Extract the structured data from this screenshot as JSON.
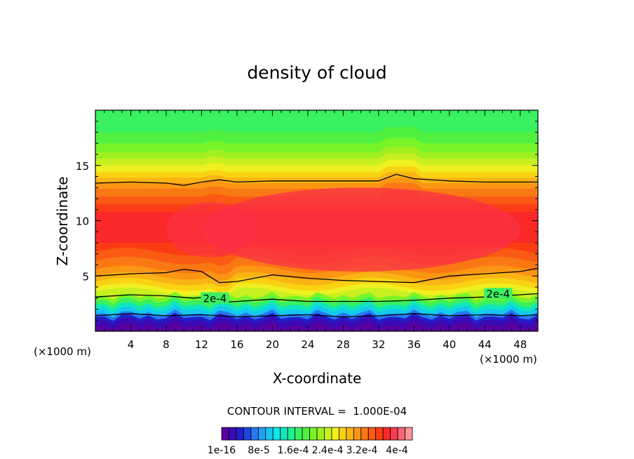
{
  "chart_data": {
    "type": "contour",
    "title": "density of cloud",
    "xlabel": "X-coordinate",
    "ylabel": "Z-coordinate",
    "x_unit": "(×1000 m)",
    "y_unit": "(×1000 m)",
    "xlim": [
      0,
      50
    ],
    "ylim": [
      0,
      20
    ],
    "x_ticks": [
      4,
      8,
      12,
      16,
      20,
      24,
      28,
      32,
      36,
      40,
      44,
      48
    ],
    "y_ticks": [
      5,
      10,
      15
    ],
    "contour_interval": "CONTOUR INTERVAL =  1.000E-04",
    "contour_line_labels": [
      "2e-4",
      "2e-4"
    ],
    "colorbar_labels": [
      "1e-16",
      "8e-5",
      "1.6e-4",
      "2.4e-4",
      "3.2e-4",
      "4e-4"
    ],
    "colorbar_colors": [
      "#5a00a0",
      "#3c0ab4",
      "#2020c8",
      "#1e46dc",
      "#2878f0",
      "#1ea0f0",
      "#14c8f0",
      "#10e6e6",
      "#10e6be",
      "#20f090",
      "#38f060",
      "#50f040",
      "#78f428",
      "#a0f020",
      "#c8f020",
      "#f0f020",
      "#fad214",
      "#fab414",
      "#fa9614",
      "#fa7814",
      "#fa5a14",
      "#fa3c14",
      "#fa2828",
      "#fa3c50",
      "#fa6478",
      "#fa9696"
    ],
    "series": [
      {
        "type": "contour_line",
        "level": "2e-4",
        "x": [
          0,
          4,
          8,
          11,
          13,
          14,
          16,
          20,
          24,
          28,
          32,
          36,
          40,
          44,
          48,
          50
        ],
        "y": [
          3.1,
          3.3,
          3.2,
          3.0,
          3.1,
          2.6,
          2.7,
          2.9,
          2.7,
          2.7,
          2.7,
          2.8,
          3.0,
          3.1,
          3.3,
          3.4
        ]
      },
      {
        "type": "contour_line",
        "level": "lower",
        "x": [
          0,
          4,
          8,
          12,
          16,
          20,
          24,
          28,
          32,
          36,
          40,
          44,
          48,
          50
        ],
        "y": [
          1.4,
          1.6,
          1.4,
          1.5,
          1.3,
          1.4,
          1.5,
          1.3,
          1.4,
          1.6,
          1.4,
          1.5,
          1.4,
          1.5
        ]
      },
      {
        "type": "contour_line",
        "level": "lower-middle",
        "x": [
          0,
          4,
          8,
          10,
          12,
          14,
          16,
          20,
          24,
          28,
          32,
          36,
          40,
          44,
          48,
          50
        ],
        "y": [
          5.0,
          5.2,
          5.3,
          5.6,
          5.4,
          4.4,
          4.5,
          5.1,
          4.8,
          4.6,
          4.5,
          4.4,
          5.0,
          5.2,
          5.4,
          5.7
        ]
      },
      {
        "type": "contour_line",
        "level": "upper",
        "x": [
          0,
          4,
          8,
          10,
          12,
          14,
          16,
          20,
          24,
          28,
          32,
          34,
          36,
          40,
          44,
          48,
          50
        ],
        "y": [
          13.4,
          13.5,
          13.4,
          13.2,
          13.5,
          13.7,
          13.5,
          13.6,
          13.6,
          13.6,
          13.6,
          14.2,
          13.8,
          13.6,
          13.5,
          13.5,
          13.5
        ]
      }
    ],
    "field_bands": [
      {
        "z_top": 0.5,
        "color": "#5a00a0"
      },
      {
        "z_top": 1.0,
        "color": "#3c0ab4"
      },
      {
        "z_top": 1.3,
        "color": "#2020c8"
      },
      {
        "z_top": 1.6,
        "color": "#2878f0"
      },
      {
        "z_top": 2.0,
        "color": "#14c8f0"
      },
      {
        "z_top": 2.4,
        "color": "#10e6be"
      },
      {
        "z_top": 2.8,
        "color": "#38f060"
      },
      {
        "z_top": 3.2,
        "color": "#78f428"
      },
      {
        "z_top": 3.6,
        "color": "#c8f020"
      },
      {
        "z_top": 4.0,
        "color": "#f0f020"
      },
      {
        "z_top": 4.5,
        "color": "#fad214"
      },
      {
        "z_top": 5.0,
        "color": "#fab414"
      },
      {
        "z_top": 5.6,
        "color": "#fa9614"
      },
      {
        "z_top": 6.4,
        "color": "#fa7814"
      },
      {
        "z_top": 7.2,
        "color": "#fa5a14"
      },
      {
        "z_top": 8.0,
        "color": "#fa3c14"
      },
      {
        "z_top": 10.8,
        "color": "#fa2828"
      },
      {
        "z_top": 11.5,
        "color": "#fa3c14"
      },
      {
        "z_top": 12.2,
        "color": "#fa5a14"
      },
      {
        "z_top": 12.9,
        "color": "#fa7814"
      },
      {
        "z_top": 13.4,
        "color": "#fa9614"
      },
      {
        "z_top": 13.9,
        "color": "#fab414"
      },
      {
        "z_top": 14.4,
        "color": "#fad214"
      },
      {
        "z_top": 15.0,
        "color": "#f0f020"
      },
      {
        "z_top": 15.6,
        "color": "#c8f020"
      },
      {
        "z_top": 16.2,
        "color": "#a0f020"
      },
      {
        "z_top": 17.0,
        "color": "#78f428"
      },
      {
        "z_top": 18.0,
        "color": "#50f040"
      },
      {
        "z_top": 20.0,
        "color": "#38f060"
      }
    ]
  }
}
